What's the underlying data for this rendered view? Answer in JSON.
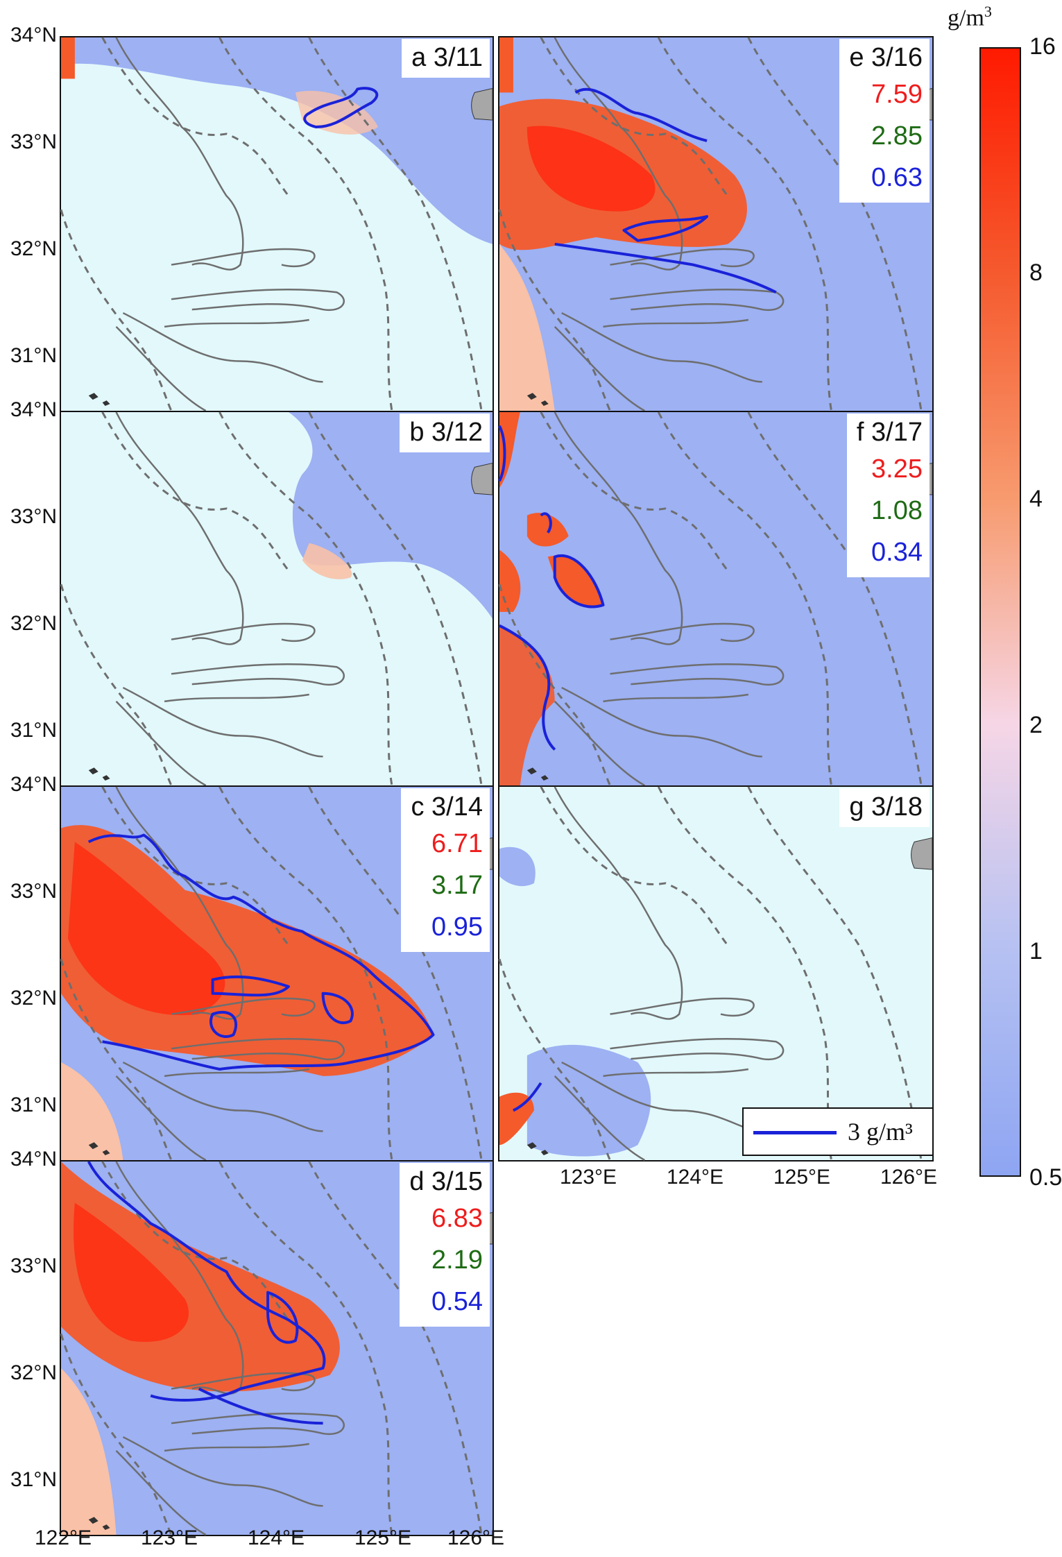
{
  "colorbar": {
    "unit": "g/m",
    "unit_exp": "3",
    "ticks": [
      "16",
      "8",
      "4",
      "2",
      "1",
      "0.5"
    ],
    "colors": [
      "#ff1a00",
      "#f55a2e",
      "#f79b6f",
      "#f6d6e6",
      "#b6c1f2",
      "#8ea5f2"
    ]
  },
  "legend": {
    "label": "3 g/m³",
    "line_color": "#1a22d8"
  },
  "panels": [
    {
      "id": "a",
      "label": "a 3/11",
      "stats": []
    },
    {
      "id": "b",
      "label": "b 3/12",
      "stats": []
    },
    {
      "id": "c",
      "label": "c 3/14",
      "stats": [
        "6.71",
        "3.17",
        "0.95"
      ]
    },
    {
      "id": "d",
      "label": "d 3/15",
      "stats": [
        "6.83",
        "2.19",
        "0.54"
      ]
    },
    {
      "id": "e",
      "label": "e 3/16",
      "stats": [
        "7.59",
        "2.85",
        "0.63"
      ]
    },
    {
      "id": "f",
      "label": "f 3/17",
      "stats": [
        "3.25",
        "1.08",
        "0.34"
      ]
    },
    {
      "id": "g",
      "label": "g 3/18",
      "stats": []
    }
  ],
  "axes": {
    "lat_ticks": [
      "34°N",
      "33°N",
      "32°N",
      "31°N"
    ],
    "lon_ticks_left": [
      "122°E",
      "123°E",
      "124°E",
      "125°E",
      "126°E"
    ],
    "lon_ticks_right": [
      "123°E",
      "124°E",
      "125°E",
      "126°E"
    ]
  },
  "colors": {
    "background_sea": "#e2f8fb",
    "low": "#9db1f3",
    "high": "#f45a2a",
    "contour": "#1a22d8",
    "isobath": "#6e6e6e"
  }
}
